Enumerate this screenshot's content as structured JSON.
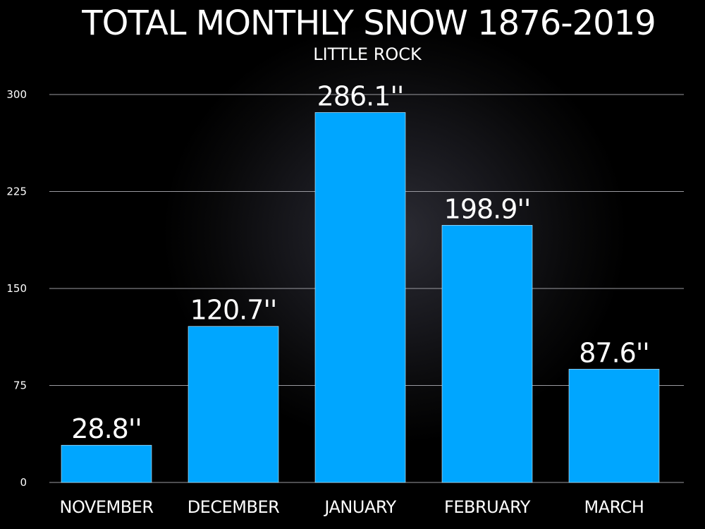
{
  "chart_data": {
    "type": "bar",
    "title": "TOTAL MONTHLY SNOW 1876-2019",
    "subtitle": "LITTLE ROCK",
    "categories": [
      "NOVEMBER",
      "DECEMBER",
      "JANUARY",
      "FEBRUARY",
      "MARCH"
    ],
    "values": [
      28.8,
      120.7,
      286.1,
      198.9,
      87.6
    ],
    "value_labels": [
      "28.8''",
      "120.7''",
      "286.1''",
      "198.9''",
      "87.6''"
    ],
    "yticks": [
      0,
      75,
      150,
      225,
      300
    ],
    "ylim": [
      0,
      300
    ],
    "grid": true,
    "legend": "none",
    "colors": {
      "bar": "#00a6ff",
      "background": "#000000",
      "text": "#ffffff",
      "grid": "#9a9aa0"
    }
  }
}
